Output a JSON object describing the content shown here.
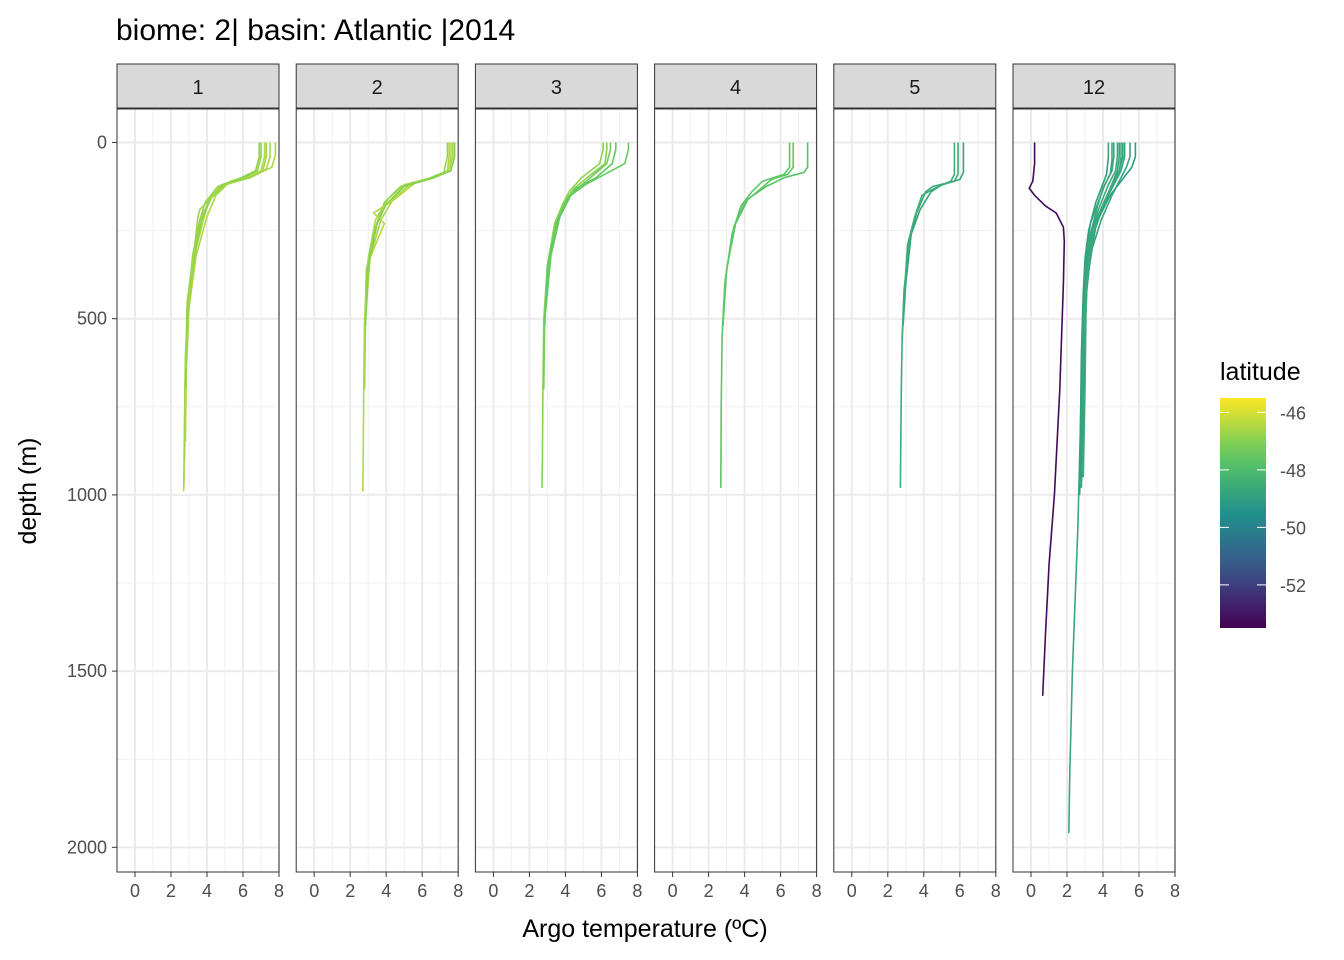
{
  "chart_data": {
    "type": "line",
    "title": "biome: 2| basin: Atlantic |2014",
    "xlabel": "Argo temperature (ºC)",
    "ylabel": "depth (m)",
    "xlim": [
      -1,
      8
    ],
    "ylim": [
      2070,
      -95
    ],
    "x_ticks": [
      0,
      2,
      4,
      6,
      8
    ],
    "y_ticks": [
      0,
      500,
      1000,
      1500,
      2000
    ],
    "y_reversed": true,
    "grid": true,
    "legend": {
      "title": "latitude",
      "placement": "right",
      "ticks": [
        -46,
        -48,
        -50,
        -52
      ],
      "range": [
        -53.5,
        -45.5
      ],
      "palette": [
        "#440154",
        "#3b528b",
        "#21918c",
        "#5ec962",
        "#fde725"
      ]
    },
    "panels": [
      {
        "label": "1",
        "series": [
          {
            "latitude": -46.4,
            "x": [
              7.2,
              7.2,
              7.0,
              6.2,
              4.8,
              4.1,
              3.9,
              3.4,
              3.0,
              2.8,
              2.75,
              2.72,
              2.7
            ],
            "y": [
              0,
              40,
              80,
              100,
              120,
              160,
              200,
              300,
              450,
              600,
              800,
              950,
              990
            ]
          },
          {
            "latitude": -46.6,
            "x": [
              7.5,
              7.5,
              7.3,
              6.6,
              5.1,
              4.3,
              3.8,
              3.3,
              2.9,
              2.8,
              2.74,
              2.71
            ],
            "y": [
              0,
              40,
              75,
              95,
              115,
              150,
              200,
              300,
              450,
              650,
              850,
              980
            ]
          },
          {
            "latitude": -46.8,
            "x": [
              6.9,
              6.9,
              6.7,
              5.9,
              4.6,
              3.9,
              3.6,
              3.2,
              2.9,
              2.8,
              2.75
            ],
            "y": [
              0,
              40,
              80,
              100,
              125,
              170,
              220,
              320,
              480,
              700,
              900
            ]
          },
          {
            "latitude": -46.5,
            "x": [
              7.8,
              7.8,
              7.6,
              6.8,
              5.3,
              4.5,
              4.0,
              3.4,
              3.0,
              2.85,
              2.8
            ],
            "y": [
              0,
              35,
              70,
              90,
              110,
              150,
              210,
              320,
              470,
              650,
              850
            ]
          },
          {
            "latitude": -47.0,
            "x": [
              7.0,
              7.0,
              6.8,
              6.0,
              4.9,
              4.2,
              3.7,
              3.3,
              2.9,
              2.8
            ],
            "y": [
              0,
              40,
              80,
              100,
              120,
              160,
              220,
              320,
              480,
              700
            ]
          },
          {
            "latitude": -46.7,
            "x": [
              7.3,
              7.3,
              7.1,
              6.4,
              5.0,
              3.6,
              3.5,
              3.3,
              3.0,
              2.8
            ],
            "y": [
              0,
              40,
              80,
              100,
              120,
              190,
              210,
              300,
              440,
              640
            ]
          }
        ]
      },
      {
        "label": "2",
        "series": [
          {
            "latitude": -46.5,
            "x": [
              7.5,
              7.5,
              7.4,
              6.5,
              5.0,
              4.1,
              3.4,
              3.0,
              2.8,
              2.75,
              2.72,
              2.7
            ],
            "y": [
              0,
              40,
              80,
              100,
              120,
              160,
              220,
              330,
              500,
              700,
              900,
              990
            ]
          },
          {
            "latitude": -46.6,
            "x": [
              7.7,
              7.7,
              7.5,
              6.7,
              5.3,
              4.4,
              3.7,
              3.1,
              2.85,
              2.8
            ],
            "y": [
              0,
              40,
              80,
              100,
              120,
              160,
              220,
              330,
              500,
              700
            ]
          },
          {
            "latitude": -46.8,
            "x": [
              7.4,
              7.4,
              7.2,
              6.2,
              4.8,
              3.9,
              3.4,
              2.9,
              2.8
            ],
            "y": [
              0,
              40,
              85,
              105,
              125,
              170,
              240,
              360,
              540
            ]
          },
          {
            "latitude": -46.4,
            "x": [
              7.6,
              7.6,
              7.5,
              6.9,
              5.6,
              4.5,
              3.3,
              3.9,
              3.0,
              2.8
            ],
            "y": [
              0,
              40,
              80,
              95,
              115,
              160,
              200,
              230,
              340,
              520
            ]
          },
          {
            "latitude": -47.0,
            "x": [
              7.8,
              7.8,
              7.6,
              6.6,
              5.0,
              4.0,
              3.5,
              3.0,
              2.85
            ],
            "y": [
              0,
              40,
              80,
              100,
              125,
              175,
              230,
              350,
              520
            ]
          }
        ]
      },
      {
        "label": "3",
        "series": [
          {
            "latitude": -47.0,
            "x": [
              6.3,
              6.3,
              6.2,
              5.2,
              4.5,
              3.9,
              3.4,
              3.0,
              2.8,
              2.75,
              2.72,
              2.7
            ],
            "y": [
              0,
              20,
              60,
              100,
              130,
              170,
              230,
              350,
              500,
              700,
              900,
              980
            ]
          },
          {
            "latitude": -47.2,
            "x": [
              6.5,
              6.5,
              6.3,
              5.5,
              4.8,
              4.0,
              3.6,
              3.1,
              2.85,
              2.8
            ],
            "y": [
              0,
              20,
              60,
              95,
              125,
              165,
              225,
              340,
              500,
              700
            ]
          },
          {
            "latitude": -47.4,
            "x": [
              7.5,
              7.5,
              7.3,
              6.2,
              5.1,
              4.3,
              3.7,
              3.2,
              2.9
            ],
            "y": [
              0,
              20,
              60,
              90,
              120,
              150,
              210,
              320,
              480
            ]
          },
          {
            "latitude": -46.9,
            "x": [
              6.1,
              6.1,
              5.9,
              4.9,
              4.2,
              3.8,
              3.4,
              3.0,
              2.8
            ],
            "y": [
              0,
              20,
              60,
              100,
              140,
              180,
              240,
              360,
              520
            ]
          },
          {
            "latitude": -47.5,
            "x": [
              6.8,
              6.8,
              6.6,
              5.7,
              4.6,
              4.0,
              3.5,
              3.0,
              2.85
            ],
            "y": [
              0,
              20,
              60,
              100,
              130,
              170,
              230,
              350,
              520
            ]
          }
        ]
      },
      {
        "label": "4",
        "series": [
          {
            "latitude": -47.6,
            "x": [
              6.5,
              6.5,
              6.2,
              5.0,
              4.4,
              3.8,
              3.3,
              2.9,
              2.75,
              2.7,
              2.68
            ],
            "y": [
              0,
              70,
              90,
              110,
              140,
              180,
              260,
              400,
              550,
              750,
              980
            ]
          },
          {
            "latitude": -47.8,
            "x": [
              7.5,
              7.5,
              7.3,
              6.2,
              5.2,
              4.2,
              3.5,
              3.0,
              2.8
            ],
            "y": [
              0,
              70,
              85,
              100,
              125,
              160,
              230,
              360,
              520
            ]
          },
          {
            "latitude": -47.5,
            "x": [
              6.7,
              6.7,
              6.4,
              5.5,
              4.8,
              4.0,
              3.4,
              2.95,
              2.78
            ],
            "y": [
              0,
              70,
              90,
              105,
              135,
              170,
              240,
              380,
              530
            ]
          }
        ]
      },
      {
        "label": "5",
        "series": [
          {
            "latitude": -48.6,
            "x": [
              5.9,
              5.9,
              5.7,
              4.5,
              4.1,
              3.6,
              3.2,
              2.9,
              2.8,
              2.75,
              2.72,
              2.7
            ],
            "y": [
              0,
              90,
              110,
              125,
              140,
              200,
              280,
              420,
              550,
              700,
              850,
              980
            ]
          },
          {
            "latitude": -48.8,
            "x": [
              6.2,
              6.2,
              6.0,
              5.0,
              4.4,
              3.8,
              3.3,
              3.0,
              2.85
            ],
            "y": [
              0,
              85,
              105,
              120,
              140,
              190,
              260,
              400,
              520
            ]
          },
          {
            "latitude": -48.5,
            "x": [
              5.7,
              5.7,
              5.5,
              4.6,
              3.9,
              3.5,
              3.1,
              2.9,
              2.8
            ],
            "y": [
              0,
              90,
              110,
              130,
              150,
              210,
              290,
              440,
              560
            ]
          }
        ]
      },
      {
        "label": "12",
        "series": [
          {
            "latitude": -53.3,
            "x": [
              0.2,
              0.2,
              0.1,
              -0.1,
              0.2,
              0.8,
              1.4,
              1.8,
              1.85,
              1.8,
              1.6,
              1.3,
              1.0,
              0.8,
              0.65
            ],
            "y": [
              0,
              60,
              110,
              130,
              150,
              180,
              200,
              240,
              280,
              400,
              700,
              1000,
              1200,
              1400,
              1570
            ]
          },
          {
            "latitude": -48.7,
            "x": [
              4.6,
              4.6,
              4.5,
              4.1,
              3.8,
              3.3,
              3.1,
              3.0,
              2.9,
              2.8,
              2.7,
              2.6,
              2.45,
              2.3,
              2.15,
              2.1
            ],
            "y": [
              0,
              40,
              80,
              120,
              160,
              230,
              300,
              380,
              500,
              700,
              900,
              1100,
              1300,
              1500,
              1800,
              1960
            ]
          },
          {
            "latitude": -48.9,
            "x": [
              5.1,
              5.1,
              4.9,
              4.5,
              4.1,
              3.6,
              3.3,
              3.1,
              3.0,
              2.9,
              2.8,
              2.7
            ],
            "y": [
              0,
              40,
              80,
              120,
              170,
              240,
              320,
              420,
              520,
              700,
              850,
              1000
            ]
          },
          {
            "latitude": -49.0,
            "x": [
              4.3,
              4.3,
              4.2,
              3.9,
              3.6,
              3.2,
              3.0,
              2.9,
              2.8,
              2.75,
              2.7
            ],
            "y": [
              0,
              40,
              90,
              130,
              170,
              250,
              330,
              430,
              600,
              800,
              1000
            ]
          },
          {
            "latitude": -48.8,
            "x": [
              5.5,
              5.5,
              5.3,
              4.9,
              4.5,
              3.9,
              3.4,
              3.1,
              2.9,
              2.8
            ],
            "y": [
              0,
              40,
              70,
              110,
              150,
              220,
              300,
              400,
              600,
              850
            ]
          },
          {
            "latitude": -48.6,
            "x": [
              4.8,
              4.8,
              4.7,
              4.3,
              3.9,
              3.4,
              3.2,
              3.1,
              3.05,
              3.0,
              2.9
            ],
            "y": [
              0,
              40,
              80,
              120,
              170,
              240,
              310,
              400,
              500,
              700,
              950
            ]
          },
          {
            "latitude": -49.1,
            "x": [
              5.8,
              5.8,
              5.6,
              5.0,
              4.4,
              3.7,
              3.3,
              3.0,
              2.85
            ],
            "y": [
              0,
              40,
              70,
              110,
              150,
              220,
              300,
              420,
              600
            ]
          },
          {
            "latitude": -48.7,
            "x": [
              4.5,
              4.5,
              4.4,
              4.0,
              3.7,
              3.3,
              3.05,
              2.95,
              2.9,
              2.85
            ],
            "y": [
              0,
              50,
              90,
              130,
              180,
              260,
              340,
              450,
              550,
              750
            ]
          },
          {
            "latitude": -48.9,
            "x": [
              5.2,
              5.2,
              5.0,
              4.6,
              4.2,
              3.5,
              3.2,
              3.0,
              2.9
            ],
            "y": [
              0,
              40,
              80,
              120,
              160,
              230,
              310,
              420,
              560
            ]
          },
          {
            "latitude": -48.8,
            "x": [
              4.9,
              4.9,
              4.8,
              4.4,
              4.0,
              3.4,
              3.1,
              3.0,
              2.95,
              2.9,
              2.8
            ],
            "y": [
              0,
              40,
              80,
              130,
              175,
              250,
              330,
              440,
              600,
              800,
              980
            ]
          },
          {
            "latitude": -48.6,
            "x": [
              5.0,
              5.0,
              4.9,
              4.5,
              4.1,
              3.6,
              3.3,
              3.1,
              3.0,
              2.9
            ],
            "y": [
              0,
              40,
              85,
              125,
              165,
              230,
              300,
              380,
              460,
              560
            ]
          }
        ]
      }
    ]
  }
}
